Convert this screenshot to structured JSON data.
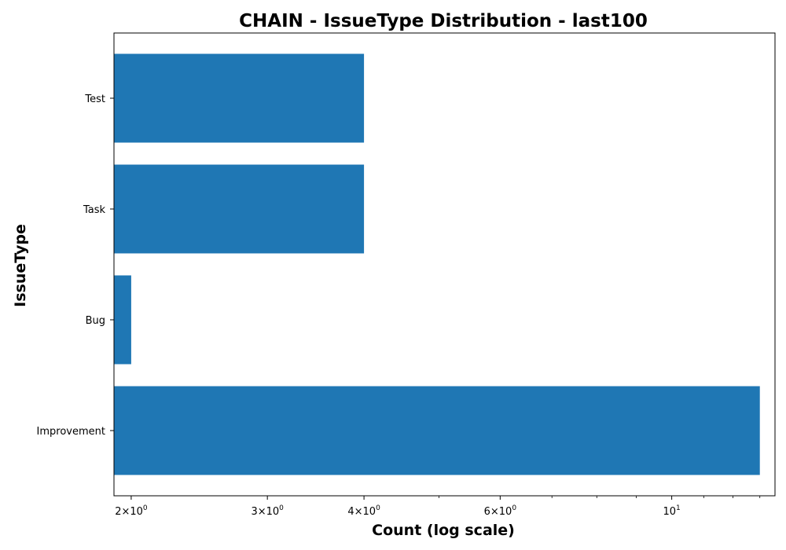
{
  "chart_data": {
    "type": "bar",
    "orientation": "horizontal",
    "title": "CHAIN - IssueType Distribution - last100",
    "xlabel": "Count (log scale)",
    "ylabel": "IssueType",
    "x_scale": "log",
    "xlim": [
      1.9,
      13.6
    ],
    "categories": [
      "Improvement",
      "Bug",
      "Task",
      "Test"
    ],
    "values": [
      13,
      2,
      4,
      4
    ],
    "bar_color": "#1f77b4",
    "x_ticks": [
      {
        "value": 2,
        "base": "2",
        "exp": "0"
      },
      {
        "value": 3,
        "base": "3",
        "exp": "0"
      },
      {
        "value": 4,
        "base": "4",
        "exp": "0"
      },
      {
        "value": 6,
        "base": "6",
        "exp": "0"
      },
      {
        "value": 10,
        "base": "10",
        "exp": "1"
      }
    ],
    "grid": false,
    "legend": "none"
  }
}
